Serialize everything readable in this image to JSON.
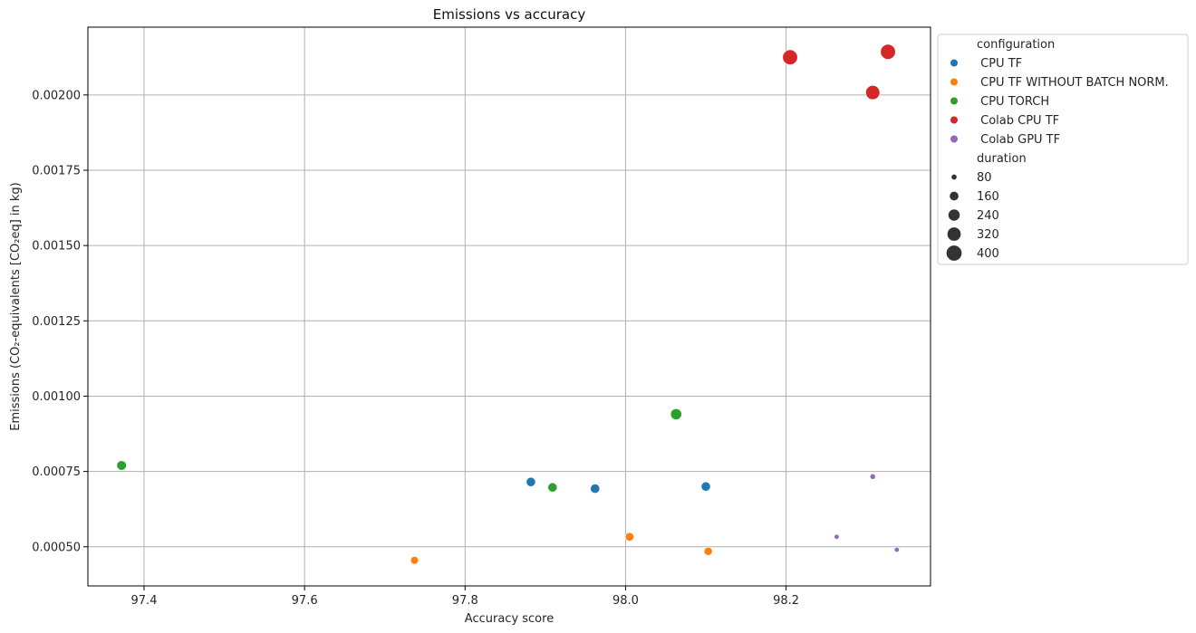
{
  "chart_data": {
    "type": "scatter",
    "title": "Emissions vs accuracy",
    "xlabel": "Accuracy score",
    "ylabel": "Emissions (CO₂-equivalents [CO₂eq] in kg)",
    "xlim": [
      97.33,
      98.38
    ],
    "ylim": [
      0.00037,
      0.002225
    ],
    "xticks": [
      97.4,
      97.6,
      97.8,
      98.0,
      98.2
    ],
    "xtick_labels": [
      "97.4",
      "97.6",
      "97.8",
      "98.0",
      "98.2"
    ],
    "yticks": [
      0.0005,
      0.00075,
      0.001,
      0.00125,
      0.0015,
      0.00175,
      0.002
    ],
    "ytick_labels": [
      "0.00050",
      "0.00075",
      "0.00100",
      "0.00125",
      "0.00150",
      "0.00175",
      "0.00200"
    ],
    "grid": true,
    "legend_position": "outside-right",
    "hue_title": "configuration",
    "size_title": "duration",
    "size_legend": [
      {
        "label": "80",
        "value": 80
      },
      {
        "label": "160",
        "value": 160
      },
      {
        "label": "240",
        "value": 240
      },
      {
        "label": "320",
        "value": 320
      },
      {
        "label": "400",
        "value": 400
      }
    ],
    "series": [
      {
        "name": " CPU TF",
        "color": "#1f77b4",
        "points": [
          {
            "x": 97.882,
            "y": 0.000715,
            "duration": 180
          },
          {
            "x": 97.962,
            "y": 0.000693,
            "duration": 180
          },
          {
            "x": 98.1,
            "y": 0.0007,
            "duration": 180
          }
        ]
      },
      {
        "name": " CPU TF WITHOUT BATCH NORM.",
        "color": "#ff7f0e",
        "points": [
          {
            "x": 97.737,
            "y": 0.000455,
            "duration": 140
          },
          {
            "x": 98.005,
            "y": 0.000533,
            "duration": 160
          },
          {
            "x": 98.103,
            "y": 0.000485,
            "duration": 150
          }
        ]
      },
      {
        "name": " CPU TORCH",
        "color": "#2ca02c",
        "points": [
          {
            "x": 97.372,
            "y": 0.00077,
            "duration": 190
          },
          {
            "x": 97.909,
            "y": 0.000697,
            "duration": 180
          },
          {
            "x": 98.063,
            "y": 0.00094,
            "duration": 240
          }
        ]
      },
      {
        "name": " Colab CPU TF",
        "color": "#d62728",
        "points": [
          {
            "x": 98.205,
            "y": 0.002125,
            "duration": 400
          },
          {
            "x": 98.308,
            "y": 0.002008,
            "duration": 360
          },
          {
            "x": 98.327,
            "y": 0.002143,
            "duration": 400
          }
        ]
      },
      {
        "name": " Colab GPU TF",
        "color": "#9467bd",
        "points": [
          {
            "x": 98.263,
            "y": 0.000533,
            "duration": 80
          },
          {
            "x": 98.308,
            "y": 0.000733,
            "duration": 90
          },
          {
            "x": 98.338,
            "y": 0.00049,
            "duration": 80
          }
        ]
      }
    ]
  }
}
